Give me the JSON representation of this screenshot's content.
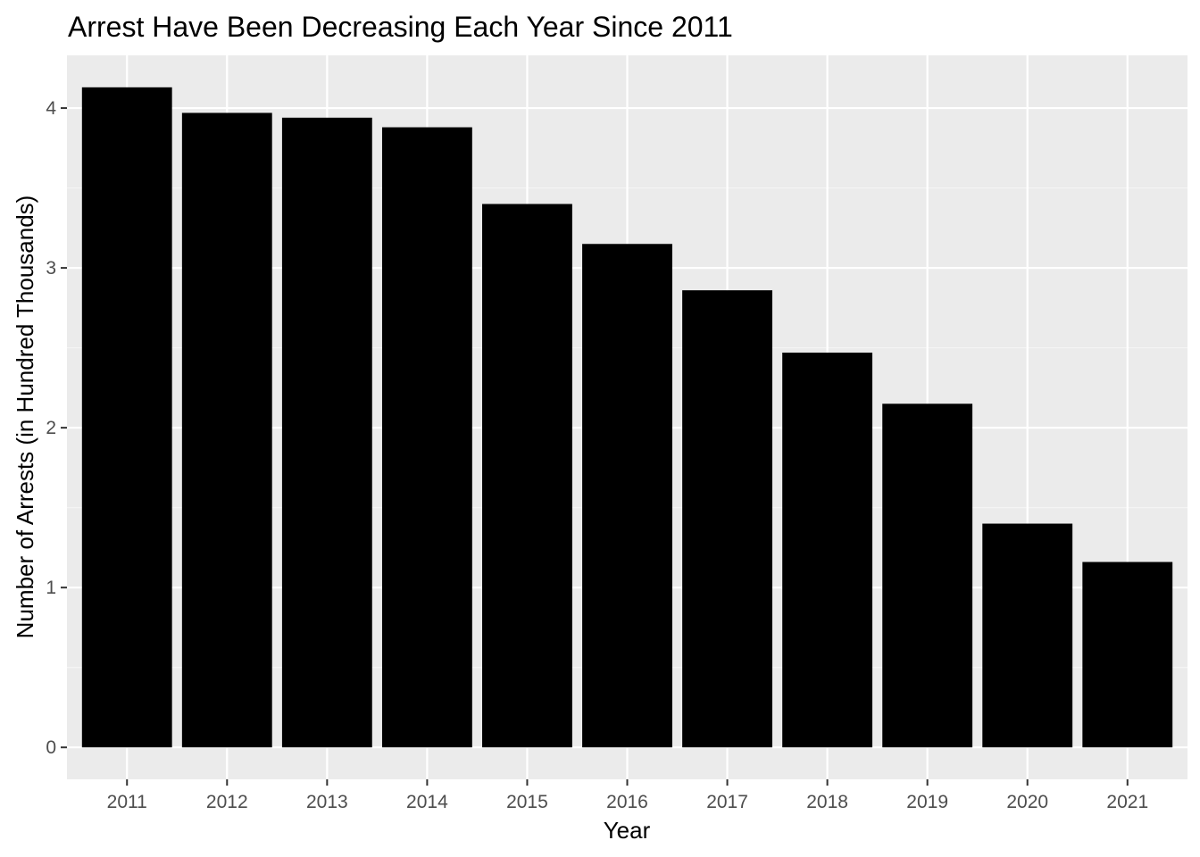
{
  "chart_data": {
    "type": "bar",
    "title": "Arrest Have Been Decreasing Each Year Since 2011",
    "xlabel": "Year",
    "ylabel": "Number of Arrests (in Hundred Thousands)",
    "categories": [
      "2011",
      "2012",
      "2013",
      "2014",
      "2015",
      "2016",
      "2017",
      "2018",
      "2019",
      "2020",
      "2021"
    ],
    "values": [
      4.13,
      3.97,
      3.94,
      3.88,
      3.4,
      3.15,
      2.86,
      2.47,
      2.15,
      1.4,
      1.16
    ],
    "yticks": [
      "0",
      "1",
      "2",
      "3",
      "4"
    ],
    "ylim": [
      -0.2,
      4.33
    ],
    "grid": true,
    "legend": "none",
    "colors": {
      "bar": "#000000",
      "panel_background": "#ebebeb",
      "grid_major": "#ffffff",
      "grid_minor": "#f5f5f5",
      "tick_text": "#4d4d4d"
    }
  }
}
